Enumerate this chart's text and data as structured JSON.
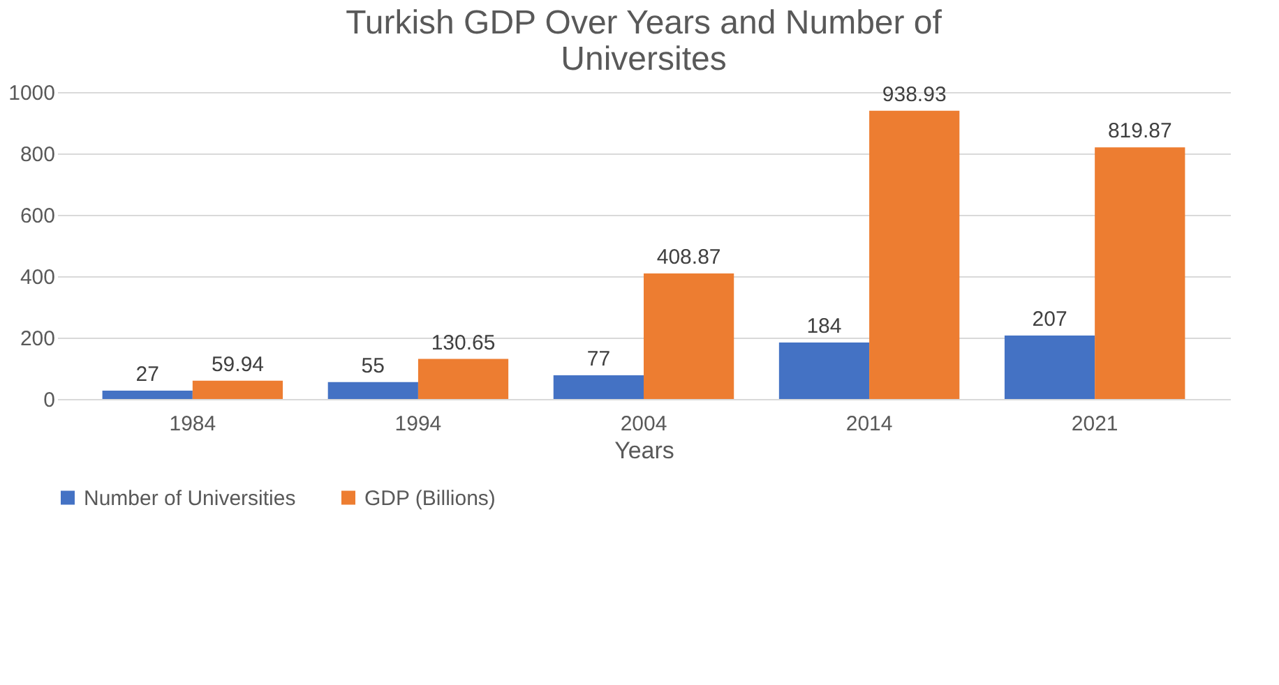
{
  "chart_data": {
    "type": "bar",
    "title": "Turkish GDP Over Years and Number of Universites",
    "xlabel": "Years",
    "categories": [
      "1984",
      "1994",
      "2004",
      "2014",
      "2021"
    ],
    "series": [
      {
        "name": "Number of Universities",
        "color": "#4472c4",
        "values": [
          27,
          55,
          77,
          184,
          207
        ]
      },
      {
        "name": "GDP (Billions)",
        "color": "#ed7d31",
        "values": [
          59.94,
          130.65,
          408.87,
          938.93,
          819.87
        ]
      }
    ],
    "ylim": [
      0,
      1000
    ],
    "yticks": [
      0,
      200,
      400,
      600,
      800,
      1000
    ],
    "grid": "y",
    "legend": "bottom",
    "data_labels": true
  }
}
